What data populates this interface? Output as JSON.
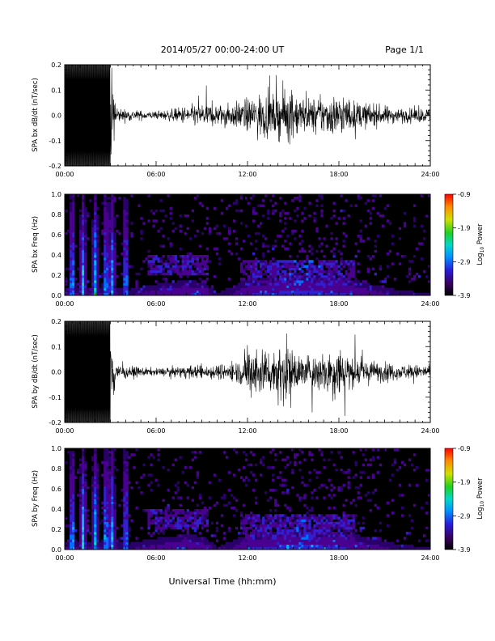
{
  "header": {
    "title": "2014/05/27   00:00-24:00 UT",
    "page": "Page 1/1"
  },
  "xaxis_label": "Universal Time (hh:mm)",
  "colors": {
    "trace": "#000000",
    "spec_bg": "#000000"
  },
  "chart_data": [
    {
      "type": "line",
      "ylabel": "SPA bx dB/dt (nT/sec)",
      "ylim": [
        -0.2,
        0.2
      ],
      "yticks": [
        "-0.2",
        "-0.1",
        "0.0",
        "0.1",
        "0.2"
      ],
      "xlim": [
        0,
        24
      ],
      "xticks": [
        "00:00",
        "06:00",
        "12:00",
        "18:00",
        "24:00"
      ],
      "envelope": {
        "x_hours": [
          0,
          0.5,
          1,
          1.5,
          2,
          2.5,
          3,
          3.5,
          4,
          5,
          6,
          7,
          8,
          9,
          10,
          11,
          11.5,
          12,
          12.5,
          13,
          13.5,
          14,
          14.5,
          15,
          15.5,
          16,
          17,
          18,
          19,
          20,
          21,
          22,
          23,
          24
        ],
        "amplitude": [
          0.2,
          0.2,
          0.2,
          0.2,
          0.2,
          0.2,
          0.2,
          0.03,
          0.025,
          0.02,
          0.015,
          0.025,
          0.04,
          0.05,
          0.045,
          0.05,
          0.06,
          0.07,
          0.08,
          0.1,
          0.08,
          0.09,
          0.12,
          0.1,
          0.08,
          0.07,
          0.08,
          0.09,
          0.06,
          0.05,
          0.04,
          0.03,
          0.03,
          0.03
        ]
      }
    },
    {
      "type": "heatmap",
      "ylabel": "SPA bx Freq (Hz)",
      "ylim": [
        0,
        1.0
      ],
      "yticks": [
        "0.0",
        "0.2",
        "0.4",
        "0.6",
        "0.8",
        "1.0"
      ],
      "xlim": [
        0,
        24
      ],
      "xticks": [
        "00:00",
        "06:00",
        "12:00",
        "18:00",
        "24:00"
      ],
      "colorbar": {
        "label": "Log10 Power",
        "ticks": [
          "-0.9",
          "-1.9",
          "-2.9",
          "-3.9"
        ],
        "range": [
          -3.9,
          -0.9
        ]
      }
    },
    {
      "type": "line",
      "ylabel": "SPA by dB/dt (nT/sec)",
      "ylim": [
        -0.2,
        0.2
      ],
      "yticks": [
        "-0.2",
        "-0.1",
        "0.0",
        "0.1",
        "0.2"
      ],
      "xlim": [
        0,
        24
      ],
      "xticks": [
        "00:00",
        "06:00",
        "12:00",
        "18:00",
        "24:00"
      ],
      "envelope": {
        "x_hours": [
          0,
          0.5,
          1,
          1.5,
          2,
          2.5,
          3,
          3.5,
          4,
          5,
          6,
          7,
          8,
          9,
          10,
          11,
          11.5,
          12,
          12.5,
          13,
          13.5,
          14,
          14.5,
          15,
          15.5,
          16,
          17,
          18,
          19,
          20,
          21,
          22,
          23,
          24
        ],
        "amplitude": [
          0.2,
          0.2,
          0.2,
          0.2,
          0.2,
          0.2,
          0.2,
          0.03,
          0.025,
          0.02,
          0.015,
          0.02,
          0.025,
          0.03,
          0.03,
          0.04,
          0.05,
          0.09,
          0.12,
          0.1,
          0.09,
          0.12,
          0.14,
          0.09,
          0.07,
          0.07,
          0.09,
          0.12,
          0.06,
          0.05,
          0.04,
          0.03,
          0.03,
          0.03
        ]
      }
    },
    {
      "type": "heatmap",
      "ylabel": "SPA by Freq (Hz)",
      "ylim": [
        0,
        1.0
      ],
      "yticks": [
        "0.0",
        "0.2",
        "0.4",
        "0.6",
        "0.8",
        "1.0"
      ],
      "xlim": [
        0,
        24
      ],
      "xticks": [
        "00:00",
        "06:00",
        "12:00",
        "18:00",
        "24:00"
      ],
      "colorbar": {
        "label": "Log10 Power",
        "ticks": [
          "-0.9",
          "-1.9",
          "-2.9",
          "-3.9"
        ],
        "range": [
          -3.9,
          -0.9
        ]
      }
    }
  ]
}
